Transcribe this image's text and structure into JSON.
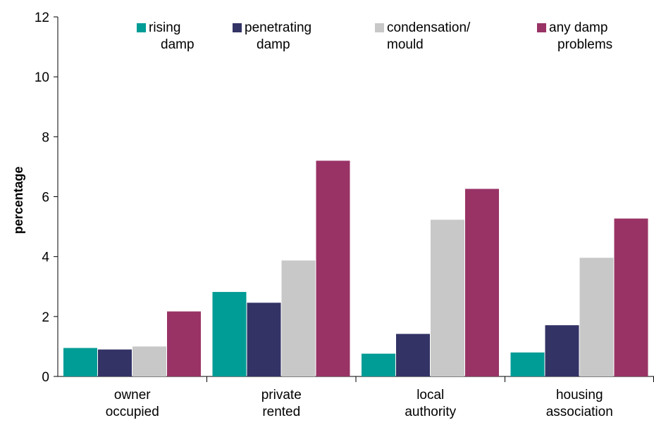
{
  "chart_data": {
    "type": "bar",
    "title": "",
    "xlabel": "",
    "ylabel": "percentage",
    "ylim": [
      0,
      12
    ],
    "yticks": [
      0,
      2,
      4,
      6,
      8,
      10,
      12
    ],
    "grid": false,
    "legend_position": "top",
    "categories": [
      [
        "owner",
        "occupied"
      ],
      [
        "private",
        "rented"
      ],
      [
        "local",
        "authority"
      ],
      [
        "housing",
        "association"
      ]
    ],
    "series": [
      {
        "name": [
          "rising",
          "damp"
        ],
        "color": "#009C96",
        "values": [
          0.95,
          2.82,
          0.76,
          0.8
        ]
      },
      {
        "name": [
          "penetrating",
          "damp"
        ],
        "color": "#333366",
        "values": [
          0.9,
          2.46,
          1.42,
          1.71
        ]
      },
      {
        "name": [
          "condensation/",
          "mould"
        ],
        "color": "#C8C8C8",
        "values": [
          1.0,
          3.87,
          5.23,
          3.96
        ]
      },
      {
        "name": [
          "any damp",
          "problems"
        ],
        "color": "#993366",
        "values": [
          2.17,
          7.2,
          6.26,
          5.27
        ]
      }
    ]
  }
}
